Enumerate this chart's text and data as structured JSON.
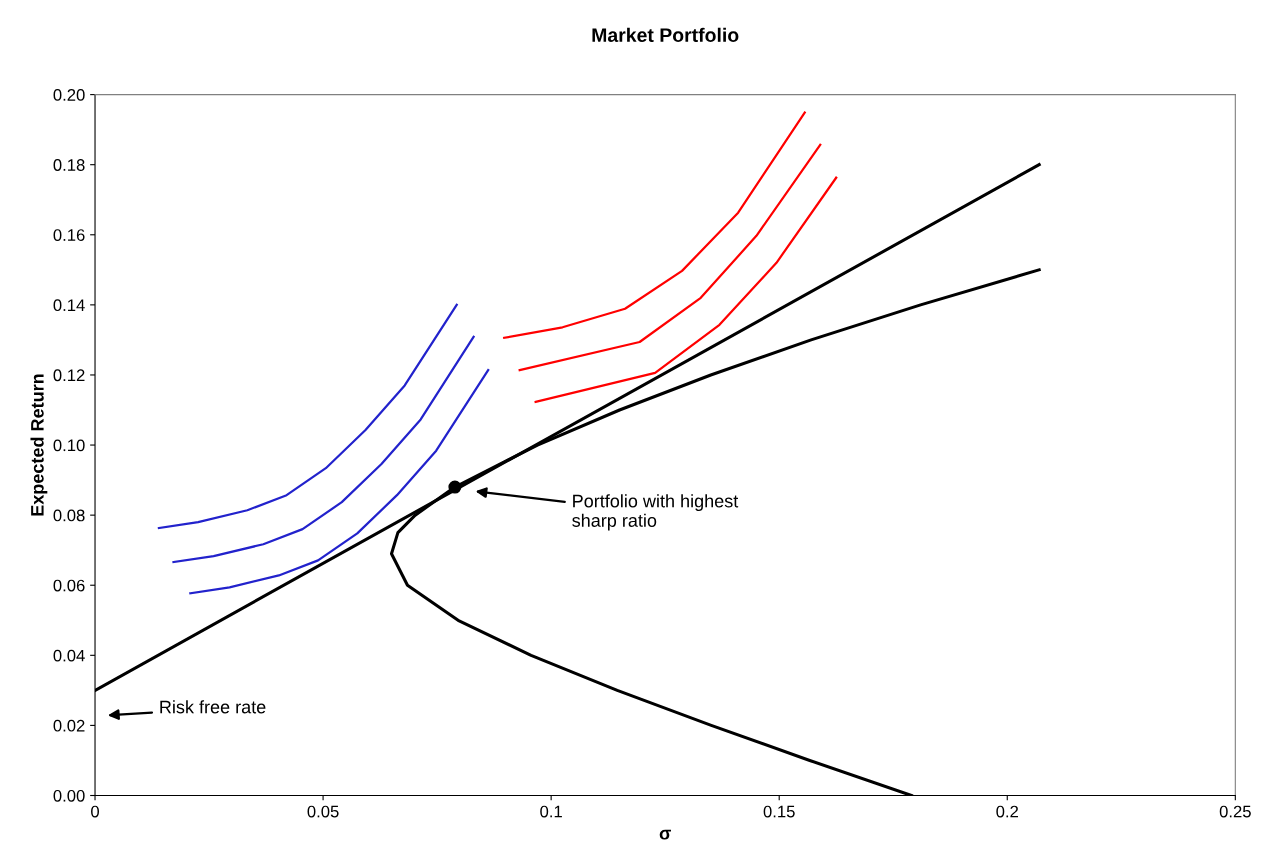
{
  "chart_data": {
    "type": "line",
    "title": "Market Portfolio",
    "xlabel": "σ",
    "ylabel": "Expected Return",
    "xlim": [
      0,
      0.25
    ],
    "ylim": [
      0,
      0.2
    ],
    "xticks": [
      0,
      0.05,
      0.1,
      0.15,
      0.2,
      0.25
    ],
    "yticks": [
      {
        "value": 0,
        "label": "0.00"
      },
      {
        "value": 0.02,
        "label": "0.02"
      },
      {
        "value": 0.04,
        "label": "0.04"
      },
      {
        "value": 0.06,
        "label": "0.06"
      },
      {
        "value": 0.08,
        "label": "0.08"
      },
      {
        "value": 0.1,
        "label": "0.10"
      },
      {
        "value": 0.12,
        "label": "0.12"
      },
      {
        "value": 0.14,
        "label": "0.14"
      },
      {
        "value": 0.16,
        "label": "0.16"
      },
      {
        "value": 0.18,
        "label": "0.18"
      },
      {
        "value": 0.2,
        "label": "0.20"
      }
    ],
    "grid": false,
    "legend": false,
    "line_style": "solid",
    "series": [
      {
        "color": "#000000",
        "x": [
          0.179,
          0.1567,
          0.1351,
          0.1145,
          0.0956,
          0.0796,
          0.0685,
          0.065,
          0.0664,
          0.0702,
          0.0789,
          0.097,
          0.115,
          0.135,
          0.157,
          0.181,
          0.207
        ],
        "values": [
          0,
          0.01,
          0.02,
          0.03,
          0.04,
          0.05,
          0.06,
          0.069,
          0.075,
          0.08,
          0.088,
          0.1,
          0.11,
          0.12,
          0.13,
          0.14,
          0.15
        ]
      },
      {
        "color": "#000000",
        "x": [
          0,
          0.207
        ],
        "values": [
          0.03,
          0.18
        ]
      },
      {
        "color": "#2222cc",
        "x": [
          0.014,
          0.0226,
          0.0334,
          0.042,
          0.0506,
          0.0593,
          0.0679,
          0.0793
        ],
        "values": [
          0.0763,
          0.078,
          0.0814,
          0.0857,
          0.0934,
          0.1043,
          0.117,
          0.14
        ]
      },
      {
        "color": "#2222cc",
        "x": [
          0.0172,
          0.026,
          0.0369,
          0.0455,
          0.0541,
          0.0628,
          0.0714,
          0.083
        ],
        "values": [
          0.0666,
          0.0683,
          0.0717,
          0.076,
          0.0837,
          0.0946,
          0.1073,
          0.1309
        ]
      },
      {
        "color": "#2222cc",
        "x": [
          0.0209,
          0.0295,
          0.0403,
          0.0489,
          0.0575,
          0.0662,
          0.0748,
          0.0862
        ],
        "values": [
          0.0577,
          0.0594,
          0.0628,
          0.0671,
          0.0748,
          0.0857,
          0.0984,
          0.1214
        ]
      },
      {
        "color": "#ff0000",
        "x": [
          0.0897,
          0.1025,
          0.1162,
          0.1287,
          0.141,
          0.1556
        ],
        "values": [
          0.1306,
          0.1336,
          0.1389,
          0.1497,
          0.1663,
          0.1949
        ]
      },
      {
        "color": "#ff0000",
        "x": [
          0.0931,
          0.1194,
          0.1328,
          0.145,
          0.159
        ],
        "values": [
          0.1214,
          0.1294,
          0.142,
          0.1597,
          0.1857
        ]
      },
      {
        "color": "#ff0000",
        "x": [
          0.0966,
          0.1228,
          0.1369,
          0.1494,
          0.1625
        ],
        "values": [
          0.1123,
          0.1206,
          0.1343,
          0.152,
          0.1763
        ]
      },
      {
        "type": "scatter",
        "marker": "circle",
        "color": "#000000",
        "x": [
          0.0789
        ],
        "values": [
          0.088
        ]
      }
    ],
    "annotations": [
      "Portfolio with highest\nsharp ratio",
      "Risk free rate"
    ]
  }
}
